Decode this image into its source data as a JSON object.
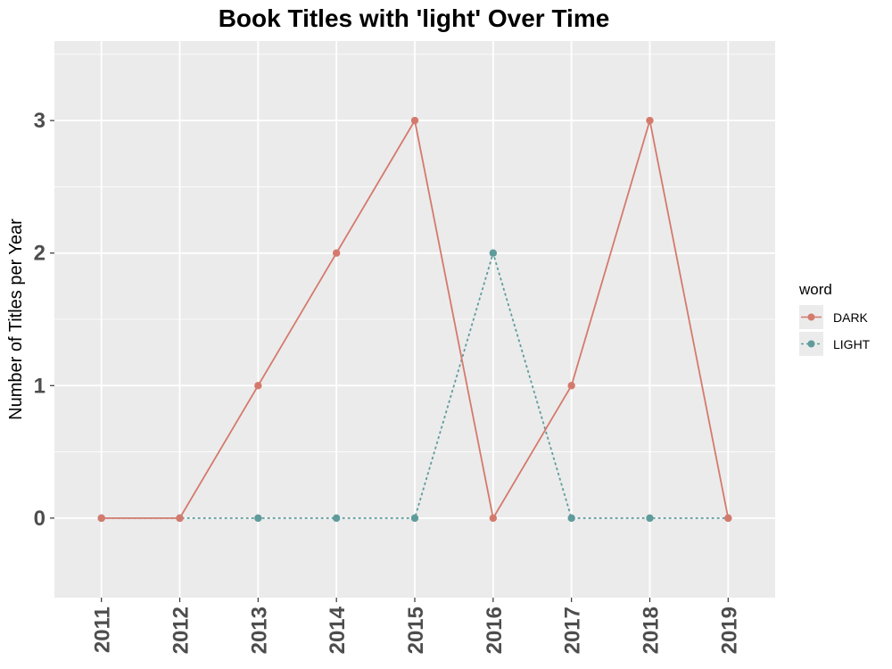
{
  "chart_data": {
    "type": "line",
    "title": "Book Titles with 'light' Over Time",
    "xlabel": "",
    "ylabel": "Number of Titles per Year",
    "x": [
      2011,
      2012,
      2013,
      2014,
      2015,
      2016,
      2017,
      2018,
      2019
    ],
    "x_tick_labels": [
      "2011",
      "2012",
      "2013",
      "2014",
      "2015",
      "2016",
      "2017",
      "2018",
      "2019"
    ],
    "y_ticks": [
      0,
      1,
      2,
      3
    ],
    "y_tick_labels": [
      "0",
      "1",
      "2",
      "3"
    ],
    "ylim": [
      -0.6,
      3.6
    ],
    "grid": true,
    "legend": {
      "title": "word",
      "placement": "right"
    },
    "series": [
      {
        "name": "DARK",
        "values": [
          0,
          0,
          1,
          2,
          3,
          0,
          1,
          3,
          0
        ],
        "color": "#d47a6d",
        "line_style": "solid"
      },
      {
        "name": "LIGHT",
        "values": [
          0,
          0,
          0,
          0,
          0,
          2,
          0,
          0,
          0
        ],
        "color": "#5f9b9b",
        "line_style": "dotted"
      }
    ],
    "panel_color": "#ebebeb",
    "grid_color": "#ffffff"
  }
}
